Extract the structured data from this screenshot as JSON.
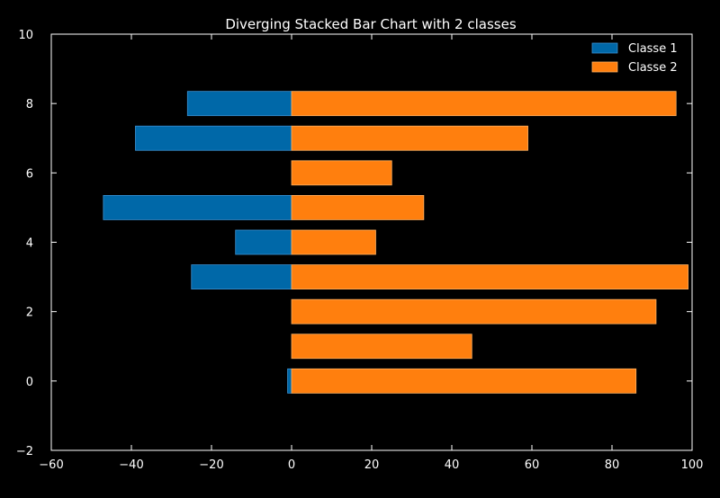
{
  "chart_data": {
    "type": "bar",
    "orientation": "horizontal",
    "stacked": "diverging",
    "title": "Diverging Stacked Bar Chart with 2 classes",
    "xlabel": "",
    "ylabel": "",
    "xlim": [
      -60,
      100
    ],
    "ylim": [
      -2,
      10
    ],
    "xticks": [
      -60,
      -40,
      -20,
      0,
      20,
      40,
      60,
      80,
      100
    ],
    "yticks": [
      -2,
      0,
      2,
      4,
      6,
      8,
      10
    ],
    "y": [
      0,
      1,
      2,
      3,
      4,
      5,
      6,
      7,
      8
    ],
    "series": [
      {
        "name": "Classe 1",
        "color": "#0068a8",
        "values": [
          -1,
          0,
          0,
          -25,
          -14,
          -47,
          0,
          -39,
          -26
        ]
      },
      {
        "name": "Classe 2",
        "color": "#ff7f0e",
        "values": [
          86,
          45,
          91,
          99,
          21,
          33,
          25,
          59,
          96
        ]
      }
    ],
    "grid": false,
    "legend": "top-right",
    "background": "#000000",
    "foreground": "#ffffff"
  }
}
